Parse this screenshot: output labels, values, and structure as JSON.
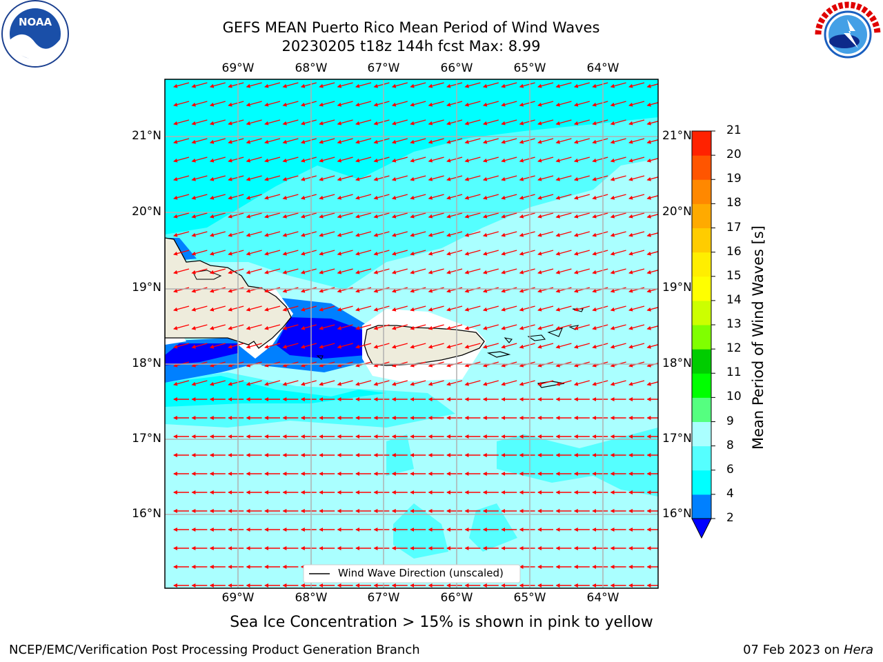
{
  "header": {
    "title_line1": "GEFS MEAN Puerto Rico Mean Period of Wind Waves",
    "title_line2": "20230205 t18z 144h fcst   Max: 8.99"
  },
  "logos": {
    "left": {
      "name": "noaa-logo",
      "text": "NOAA"
    },
    "right": {
      "name": "nws-logo",
      "text": "NATIONAL WEATHER SERVICE"
    }
  },
  "map": {
    "lon_labels": [
      "69°W",
      "68°W",
      "67°W",
      "66°W",
      "65°W",
      "64°W"
    ],
    "lat_labels": [
      "21°N",
      "20°N",
      "19°N",
      "18°N",
      "17°N",
      "16°N"
    ],
    "legend_label": "Wind Wave Direction (unscaled)",
    "arrow_color": "#ff0000",
    "land_color": "#eeecdc"
  },
  "colorbar": {
    "label": "Mean Period of Wind Waves [s]",
    "ticks": [
      "2",
      "4",
      "6",
      "8",
      "9",
      "10",
      "11",
      "12",
      "13",
      "14",
      "15",
      "16",
      "17",
      "18",
      "19",
      "20",
      "21"
    ],
    "colors": [
      "#0000ff",
      "#0080ff",
      "#00ffff",
      "#55ffff",
      "#aaffff",
      "#55ff80",
      "#00ff00",
      "#00cc00",
      "#80ff00",
      "#ccff00",
      "#ffff00",
      "#ffee00",
      "#ffcc00",
      "#ffaa00",
      "#ff8800",
      "#ff5500",
      "#ff2200",
      "#ff0000"
    ]
  },
  "footer": {
    "sea_ice_note": "Sea Ice Concentration > 15% is shown in pink to yellow",
    "left": "NCEP/EMC/Verification Post Processing Product Generation Branch",
    "right_date": "07 Feb 2023 on ",
    "right_machine": "Hera"
  }
}
